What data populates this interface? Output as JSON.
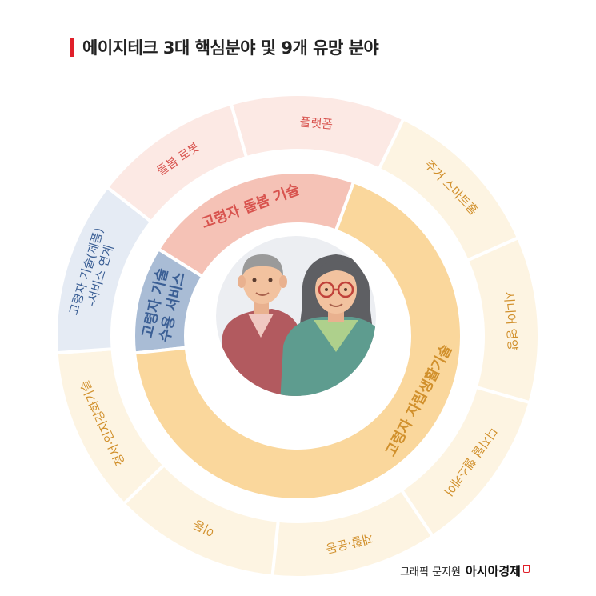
{
  "title": "에이지테크 3대 핵심분야 및 9개 유망 분야",
  "credit": {
    "text": "그래픽 문지원",
    "brand": "아시아경제"
  },
  "colors": {
    "accent": "#e0202a",
    "inner_care": "#f5c2b6",
    "inner_acceptance": "#a9bcd5",
    "inner_independence": "#fad79c",
    "outer_care": "#fce9e4",
    "outer_acceptance": "#e5ebf4",
    "outer_independence": "#fdf4e2",
    "text_care": "#d8534e",
    "text_acceptance": "#3b5f95",
    "text_independence": "#d1902c"
  },
  "core_areas": [
    {
      "label": "고령자 돌봄 기술",
      "group": "care"
    },
    {
      "label": "고령자 기술 수용 서비스",
      "group": "acceptance"
    },
    {
      "label": "고령자 자립생활기술",
      "group": "independence"
    }
  ],
  "promising_fields": [
    {
      "label": "플랫폼",
      "group": "care"
    },
    {
      "label": "주거 스마트홈",
      "group": "independence"
    },
    {
      "label": "시니어 영양",
      "group": "independence"
    },
    {
      "label": "디지털 헬스케어",
      "group": "independence"
    },
    {
      "label": "재활·운동",
      "group": "independence"
    },
    {
      "label": "이동",
      "group": "independence"
    },
    {
      "label": "정서·인지강화기술",
      "group": "independence"
    },
    {
      "label": "고령자 기술(제품) -서비스 연계",
      "group": "acceptance"
    },
    {
      "label": "돌봄 로봇",
      "group": "care"
    }
  ]
}
